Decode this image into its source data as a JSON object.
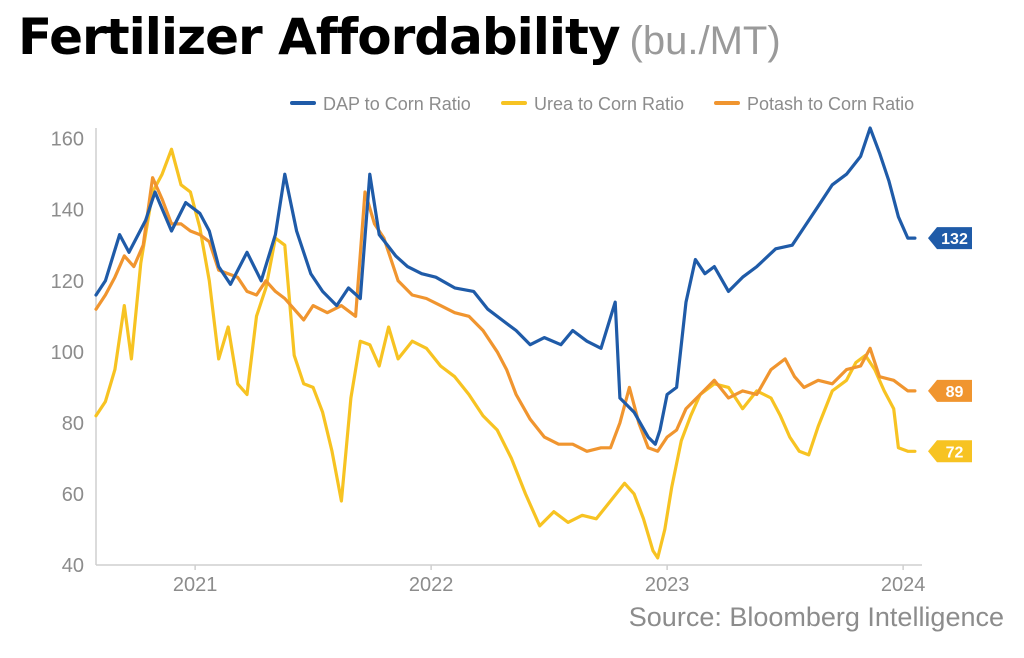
{
  "title": "Fertilizer Affordability",
  "title_unit": "(bu./MT)",
  "source": "Source: Bloomberg Intelligence",
  "chart_data": {
    "type": "line",
    "title": "Fertilizer Affordability",
    "xlabel": "",
    "ylabel": "bu./MT",
    "ylim": [
      40,
      163
    ],
    "yticks": [
      40,
      60,
      80,
      100,
      120,
      140,
      160
    ],
    "xlim": [
      2020.58,
      2024.08
    ],
    "xticks": [
      {
        "label": "2021",
        "value": 2021.0
      },
      {
        "label": "2022",
        "value": 2022.0
      },
      {
        "label": "2023",
        "value": 2023.0
      },
      {
        "label": "2024",
        "value": 2024.0
      }
    ],
    "legend_position": "top",
    "series": [
      {
        "name": "DAP to Corn Ratio",
        "color": "#1f5ba8",
        "end_label": "132",
        "points": [
          [
            2020.58,
            116
          ],
          [
            2020.62,
            120
          ],
          [
            2020.68,
            133
          ],
          [
            2020.72,
            128
          ],
          [
            2020.79,
            137
          ],
          [
            2020.83,
            145
          ],
          [
            2020.9,
            134
          ],
          [
            2020.96,
            142
          ],
          [
            2021.02,
            139
          ],
          [
            2021.06,
            134
          ],
          [
            2021.1,
            124
          ],
          [
            2021.15,
            119
          ],
          [
            2021.22,
            128
          ],
          [
            2021.28,
            120
          ],
          [
            2021.34,
            133
          ],
          [
            2021.38,
            150
          ],
          [
            2021.43,
            134
          ],
          [
            2021.49,
            122
          ],
          [
            2021.54,
            117
          ],
          [
            2021.6,
            113
          ],
          [
            2021.65,
            118
          ],
          [
            2021.7,
            115
          ],
          [
            2021.74,
            150
          ],
          [
            2021.78,
            133
          ],
          [
            2021.85,
            127
          ],
          [
            2021.9,
            124
          ],
          [
            2021.96,
            122
          ],
          [
            2022.02,
            121
          ],
          [
            2022.1,
            118
          ],
          [
            2022.18,
            117
          ],
          [
            2022.24,
            112
          ],
          [
            2022.3,
            109
          ],
          [
            2022.36,
            106
          ],
          [
            2022.42,
            102
          ],
          [
            2022.48,
            104
          ],
          [
            2022.55,
            102
          ],
          [
            2022.6,
            106
          ],
          [
            2022.66,
            103
          ],
          [
            2022.72,
            101
          ],
          [
            2022.78,
            114
          ],
          [
            2022.8,
            87
          ],
          [
            2022.86,
            83
          ],
          [
            2022.92,
            76
          ],
          [
            2022.95,
            74
          ],
          [
            2022.97,
            78
          ],
          [
            2023.0,
            88
          ],
          [
            2023.04,
            90
          ],
          [
            2023.08,
            114
          ],
          [
            2023.12,
            126
          ],
          [
            2023.16,
            122
          ],
          [
            2023.2,
            124
          ],
          [
            2023.26,
            117
          ],
          [
            2023.32,
            121
          ],
          [
            2023.38,
            124
          ],
          [
            2023.46,
            129
          ],
          [
            2023.53,
            130
          ],
          [
            2023.58,
            135
          ],
          [
            2023.64,
            141
          ],
          [
            2023.7,
            147
          ],
          [
            2023.76,
            150
          ],
          [
            2023.82,
            155
          ],
          [
            2023.86,
            163
          ],
          [
            2023.9,
            156
          ],
          [
            2023.94,
            148
          ],
          [
            2023.98,
            138
          ],
          [
            2024.02,
            132
          ],
          [
            2024.05,
            132
          ]
        ]
      },
      {
        "name": "Urea to Corn Ratio",
        "color": "#f7c322",
        "end_label": "72",
        "points": [
          [
            2020.58,
            82
          ],
          [
            2020.62,
            86
          ],
          [
            2020.66,
            95
          ],
          [
            2020.7,
            113
          ],
          [
            2020.73,
            98
          ],
          [
            2020.77,
            125
          ],
          [
            2020.82,
            145
          ],
          [
            2020.86,
            150
          ],
          [
            2020.9,
            157
          ],
          [
            2020.94,
            147
          ],
          [
            2020.98,
            145
          ],
          [
            2021.02,
            135
          ],
          [
            2021.06,
            120
          ],
          [
            2021.1,
            98
          ],
          [
            2021.14,
            107
          ],
          [
            2021.18,
            91
          ],
          [
            2021.22,
            88
          ],
          [
            2021.26,
            110
          ],
          [
            2021.3,
            118
          ],
          [
            2021.34,
            132
          ],
          [
            2021.38,
            130
          ],
          [
            2021.42,
            99
          ],
          [
            2021.46,
            91
          ],
          [
            2021.5,
            90
          ],
          [
            2021.54,
            83
          ],
          [
            2021.58,
            72
          ],
          [
            2021.62,
            58
          ],
          [
            2021.66,
            87
          ],
          [
            2021.7,
            103
          ],
          [
            2021.74,
            102
          ],
          [
            2021.78,
            96
          ],
          [
            2021.82,
            107
          ],
          [
            2021.86,
            98
          ],
          [
            2021.92,
            103
          ],
          [
            2021.98,
            101
          ],
          [
            2022.04,
            96
          ],
          [
            2022.1,
            93
          ],
          [
            2022.16,
            88
          ],
          [
            2022.22,
            82
          ],
          [
            2022.28,
            78
          ],
          [
            2022.34,
            70
          ],
          [
            2022.4,
            60
          ],
          [
            2022.46,
            51
          ],
          [
            2022.52,
            55
          ],
          [
            2022.58,
            52
          ],
          [
            2022.64,
            54
          ],
          [
            2022.7,
            53
          ],
          [
            2022.76,
            58
          ],
          [
            2022.82,
            63
          ],
          [
            2022.86,
            60
          ],
          [
            2022.9,
            53
          ],
          [
            2022.94,
            44
          ],
          [
            2022.96,
            42
          ],
          [
            2022.99,
            50
          ],
          [
            2023.02,
            62
          ],
          [
            2023.06,
            75
          ],
          [
            2023.1,
            82
          ],
          [
            2023.14,
            88
          ],
          [
            2023.2,
            91
          ],
          [
            2023.26,
            90
          ],
          [
            2023.32,
            84
          ],
          [
            2023.38,
            89
          ],
          [
            2023.44,
            87
          ],
          [
            2023.48,
            82
          ],
          [
            2023.52,
            76
          ],
          [
            2023.56,
            72
          ],
          [
            2023.6,
            71
          ],
          [
            2023.64,
            79
          ],
          [
            2023.7,
            89
          ],
          [
            2023.76,
            92
          ],
          [
            2023.8,
            97
          ],
          [
            2023.84,
            99
          ],
          [
            2023.88,
            95
          ],
          [
            2023.92,
            89
          ],
          [
            2023.96,
            84
          ],
          [
            2023.98,
            73
          ],
          [
            2024.02,
            72
          ],
          [
            2024.05,
            72
          ]
        ]
      },
      {
        "name": "Potash to Corn Ratio",
        "color": "#f0952f",
        "end_label": "89",
        "points": [
          [
            2020.58,
            112
          ],
          [
            2020.62,
            116
          ],
          [
            2020.66,
            121
          ],
          [
            2020.7,
            127
          ],
          [
            2020.74,
            124
          ],
          [
            2020.78,
            130
          ],
          [
            2020.82,
            149
          ],
          [
            2020.86,
            143
          ],
          [
            2020.9,
            136
          ],
          [
            2020.94,
            136
          ],
          [
            2020.98,
            134
          ],
          [
            2021.02,
            133
          ],
          [
            2021.06,
            131
          ],
          [
            2021.1,
            123
          ],
          [
            2021.14,
            122
          ],
          [
            2021.18,
            121
          ],
          [
            2021.22,
            117
          ],
          [
            2021.26,
            116
          ],
          [
            2021.3,
            120
          ],
          [
            2021.34,
            117
          ],
          [
            2021.38,
            115
          ],
          [
            2021.42,
            112
          ],
          [
            2021.46,
            109
          ],
          [
            2021.5,
            113
          ],
          [
            2021.56,
            111
          ],
          [
            2021.62,
            113
          ],
          [
            2021.68,
            110
          ],
          [
            2021.72,
            145
          ],
          [
            2021.76,
            136
          ],
          [
            2021.8,
            132
          ],
          [
            2021.86,
            120
          ],
          [
            2021.92,
            116
          ],
          [
            2021.98,
            115
          ],
          [
            2022.04,
            113
          ],
          [
            2022.1,
            111
          ],
          [
            2022.16,
            110
          ],
          [
            2022.22,
            106
          ],
          [
            2022.28,
            100
          ],
          [
            2022.32,
            95
          ],
          [
            2022.36,
            88
          ],
          [
            2022.42,
            81
          ],
          [
            2022.48,
            76
          ],
          [
            2022.54,
            74
          ],
          [
            2022.6,
            74
          ],
          [
            2022.66,
            72
          ],
          [
            2022.72,
            73
          ],
          [
            2022.76,
            73
          ],
          [
            2022.8,
            80
          ],
          [
            2022.84,
            90
          ],
          [
            2022.88,
            80
          ],
          [
            2022.92,
            73
          ],
          [
            2022.96,
            72
          ],
          [
            2023.0,
            76
          ],
          [
            2023.04,
            78
          ],
          [
            2023.08,
            84
          ],
          [
            2023.14,
            88
          ],
          [
            2023.2,
            92
          ],
          [
            2023.26,
            87
          ],
          [
            2023.32,
            89
          ],
          [
            2023.38,
            88
          ],
          [
            2023.44,
            95
          ],
          [
            2023.5,
            98
          ],
          [
            2023.54,
            93
          ],
          [
            2023.58,
            90
          ],
          [
            2023.64,
            92
          ],
          [
            2023.7,
            91
          ],
          [
            2023.76,
            95
          ],
          [
            2023.82,
            96
          ],
          [
            2023.86,
            101
          ],
          [
            2023.9,
            93
          ],
          [
            2023.96,
            92
          ],
          [
            2024.02,
            89
          ],
          [
            2024.05,
            89
          ]
        ]
      }
    ]
  }
}
